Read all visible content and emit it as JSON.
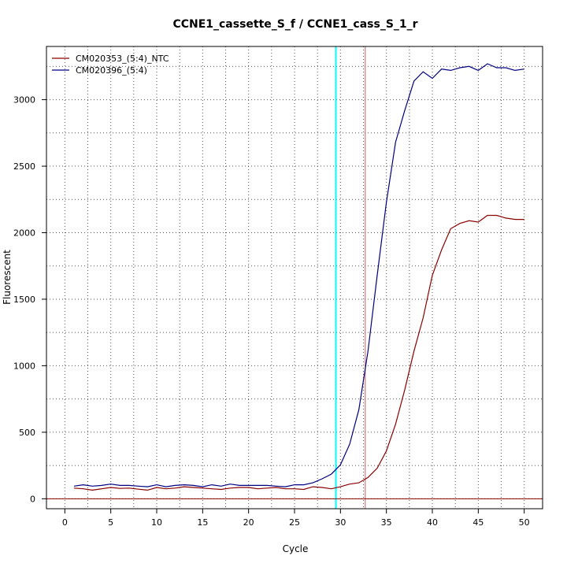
{
  "chart_data": {
    "type": "line",
    "title": "CCNE1_cassette_S_f / CCNE1_cass_S_1_r",
    "xlabel": "Cycle",
    "ylabel": "Fluorescent",
    "xlim": [
      -2,
      52
    ],
    "ylim": [
      -75,
      3400
    ],
    "x_ticks": [
      0,
      5,
      10,
      15,
      20,
      25,
      30,
      35,
      40,
      45,
      50
    ],
    "y_ticks": [
      0,
      500,
      1000,
      1500,
      2000,
      2500,
      3000
    ],
    "grid": true,
    "legend_position": "top-left",
    "series": [
      {
        "name": "CM020353_(5:4)_NTC",
        "color": "#8b0000",
        "x": [
          1,
          2,
          3,
          4,
          5,
          6,
          7,
          8,
          9,
          10,
          11,
          12,
          13,
          14,
          15,
          16,
          17,
          18,
          19,
          20,
          21,
          22,
          23,
          24,
          25,
          26,
          27,
          28,
          29,
          30,
          31,
          32,
          33,
          34,
          35,
          36,
          37,
          38,
          39,
          40,
          41,
          42,
          43,
          44,
          45,
          46,
          47,
          48,
          49,
          50
        ],
        "y": [
          80,
          75,
          65,
          75,
          85,
          78,
          80,
          72,
          65,
          85,
          75,
          80,
          90,
          85,
          80,
          75,
          70,
          80,
          85,
          85,
          75,
          80,
          85,
          75,
          75,
          70,
          90,
          85,
          75,
          90,
          110,
          120,
          160,
          230,
          360,
          560,
          820,
          1110,
          1360,
          1680,
          1870,
          2030,
          2070,
          2090,
          2080,
          2130,
          2130,
          2110,
          2100,
          2100
        ]
      },
      {
        "name": "CM020396_(5:4)",
        "color": "#000080",
        "x": [
          1,
          2,
          3,
          4,
          5,
          6,
          7,
          8,
          9,
          10,
          11,
          12,
          13,
          14,
          15,
          16,
          17,
          18,
          19,
          20,
          21,
          22,
          23,
          24,
          25,
          26,
          27,
          28,
          29,
          30,
          31,
          32,
          33,
          34,
          35,
          36,
          37,
          38,
          39,
          40,
          41,
          42,
          43,
          44,
          45,
          46,
          47,
          48,
          49,
          50
        ],
        "y": [
          95,
          105,
          95,
          100,
          110,
          100,
          100,
          95,
          90,
          105,
          90,
          100,
          105,
          100,
          90,
          105,
          95,
          110,
          100,
          100,
          100,
          100,
          95,
          90,
          105,
          105,
          120,
          150,
          185,
          255,
          410,
          670,
          1110,
          1680,
          2230,
          2680,
          2920,
          3140,
          3210,
          3160,
          3230,
          3220,
          3240,
          3250,
          3220,
          3270,
          3240,
          3240,
          3220,
          3230
        ]
      }
    ],
    "reference_lines": [
      {
        "axis": "x",
        "value": 29.5,
        "color": "#00ffff"
      },
      {
        "axis": "x",
        "value": 32.7,
        "color": "#cd5c5c"
      },
      {
        "axis": "y",
        "value": 0,
        "color": "#8b0000"
      }
    ]
  }
}
